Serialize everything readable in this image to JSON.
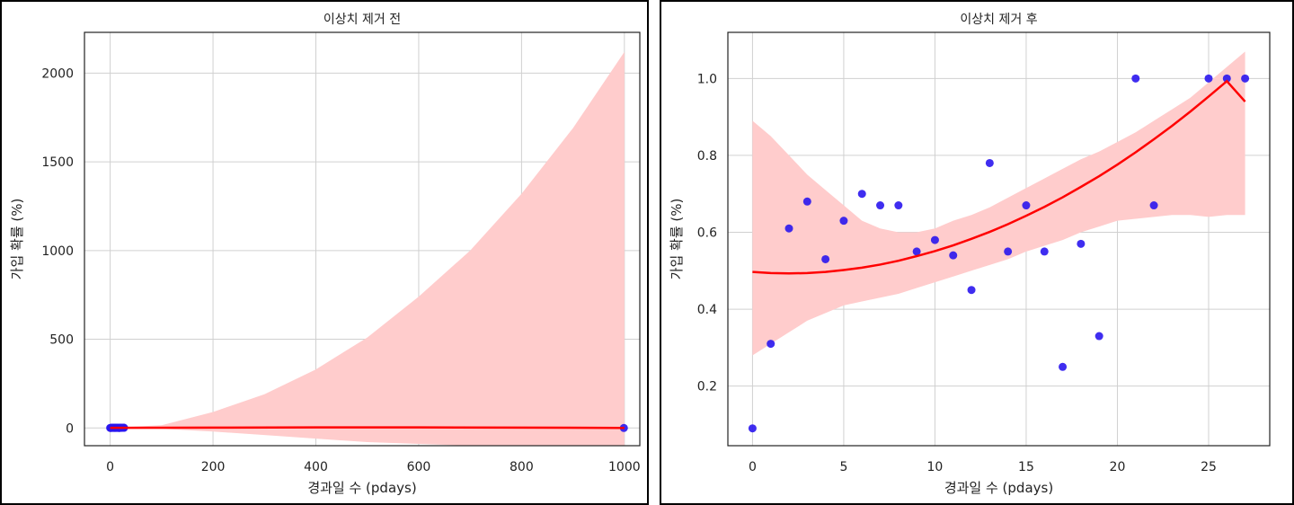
{
  "colors": {
    "ci_band": "#ffcccc",
    "fit_line": "#ff0000",
    "points": "#2a16ee",
    "grid": "#d0d0d0"
  },
  "chart_data": [
    {
      "type": "scatter",
      "title": "이상치 제거 전",
      "xlabel": "경과일 수 (pdays)",
      "ylabel": "가입 확률 (%)",
      "xlim": [
        -50,
        1030
      ],
      "ylim": [
        -100,
        2230
      ],
      "xticks": [
        0,
        200,
        400,
        600,
        800,
        1000
      ],
      "yticks": [
        0,
        500,
        1000,
        1500,
        2000
      ],
      "grid": true,
      "points": [
        {
          "x": 0,
          "y": 0.09
        },
        {
          "x": 1,
          "y": 0.31
        },
        {
          "x": 2,
          "y": 0.61
        },
        {
          "x": 3,
          "y": 0.68
        },
        {
          "x": 4,
          "y": 0.53
        },
        {
          "x": 5,
          "y": 0.63
        },
        {
          "x": 6,
          "y": 0.7
        },
        {
          "x": 7,
          "y": 0.67
        },
        {
          "x": 8,
          "y": 0.67
        },
        {
          "x": 9,
          "y": 0.55
        },
        {
          "x": 10,
          "y": 0.58
        },
        {
          "x": 11,
          "y": 0.54
        },
        {
          "x": 12,
          "y": 0.45
        },
        {
          "x": 13,
          "y": 0.78
        },
        {
          "x": 14,
          "y": 0.55
        },
        {
          "x": 15,
          "y": 0.67
        },
        {
          "x": 16,
          "y": 0.55
        },
        {
          "x": 17,
          "y": 0.25
        },
        {
          "x": 18,
          "y": 0.57
        },
        {
          "x": 19,
          "y": 0.33
        },
        {
          "x": 20,
          "y": 1.0
        },
        {
          "x": 21,
          "y": 1.0
        },
        {
          "x": 22,
          "y": 0.67
        },
        {
          "x": 25,
          "y": 1.0
        },
        {
          "x": 26,
          "y": 1.0
        },
        {
          "x": 27,
          "y": 1.0
        },
        {
          "x": 999,
          "y": 0.0
        }
      ],
      "fit_line": [
        {
          "x": 0,
          "y": 0.5
        },
        {
          "x": 200,
          "y": 2
        },
        {
          "x": 400,
          "y": 3
        },
        {
          "x": 600,
          "y": 3
        },
        {
          "x": 800,
          "y": 2
        },
        {
          "x": 1000,
          "y": 0
        }
      ],
      "ci_band": [
        {
          "x": 0,
          "lo": -1,
          "hi": 1
        },
        {
          "x": 100,
          "lo": -5,
          "hi": 15
        },
        {
          "x": 200,
          "lo": -20,
          "hi": 90
        },
        {
          "x": 300,
          "lo": -40,
          "hi": 190
        },
        {
          "x": 400,
          "lo": -60,
          "hi": 330
        },
        {
          "x": 500,
          "lo": -80,
          "hi": 510
        },
        {
          "x": 600,
          "lo": -90,
          "hi": 740
        },
        {
          "x": 700,
          "lo": -100,
          "hi": 1000
        },
        {
          "x": 800,
          "lo": -100,
          "hi": 1320
        },
        {
          "x": 900,
          "lo": -100,
          "hi": 1690
        },
        {
          "x": 1000,
          "lo": -100,
          "hi": 2120
        }
      ]
    },
    {
      "type": "scatter",
      "title": "이상치 제거 후",
      "xlabel": "경과일 수 (pdays)",
      "ylabel": "가입 확률 (%)",
      "xlim": [
        -1.35,
        28.35
      ],
      "ylim": [
        0.045,
        1.12
      ],
      "xticks": [
        0,
        5,
        10,
        15,
        20,
        25
      ],
      "yticks": [
        0.2,
        0.4,
        0.6,
        0.8,
        1.0
      ],
      "grid": true,
      "points": [
        {
          "x": 0,
          "y": 0.09
        },
        {
          "x": 1,
          "y": 0.31
        },
        {
          "x": 2,
          "y": 0.61
        },
        {
          "x": 3,
          "y": 0.68
        },
        {
          "x": 4,
          "y": 0.53
        },
        {
          "x": 5,
          "y": 0.63
        },
        {
          "x": 6,
          "y": 0.7
        },
        {
          "x": 7,
          "y": 0.67
        },
        {
          "x": 8,
          "y": 0.67
        },
        {
          "x": 9,
          "y": 0.55
        },
        {
          "x": 10,
          "y": 0.58
        },
        {
          "x": 11,
          "y": 0.54
        },
        {
          "x": 12,
          "y": 0.45
        },
        {
          "x": 13,
          "y": 0.78
        },
        {
          "x": 14,
          "y": 0.55
        },
        {
          "x": 15,
          "y": 0.67
        },
        {
          "x": 16,
          "y": 0.55
        },
        {
          "x": 17,
          "y": 0.25
        },
        {
          "x": 18,
          "y": 0.57
        },
        {
          "x": 19,
          "y": 0.33
        },
        {
          "x": 21,
          "y": 1.0
        },
        {
          "x": 22,
          "y": 0.67
        },
        {
          "x": 25,
          "y": 1.0
        },
        {
          "x": 26,
          "y": 1.0
        },
        {
          "x": 27,
          "y": 1.0
        }
      ],
      "fit_line": [
        {
          "x": 0,
          "y": 0.497
        },
        {
          "x": 1,
          "y": 0.494
        },
        {
          "x": 2,
          "y": 0.493
        },
        {
          "x": 3,
          "y": 0.494
        },
        {
          "x": 4,
          "y": 0.497
        },
        {
          "x": 5,
          "y": 0.502
        },
        {
          "x": 6,
          "y": 0.508
        },
        {
          "x": 7,
          "y": 0.516
        },
        {
          "x": 8,
          "y": 0.526
        },
        {
          "x": 9,
          "y": 0.538
        },
        {
          "x": 10,
          "y": 0.551
        },
        {
          "x": 11,
          "y": 0.566
        },
        {
          "x": 12,
          "y": 0.583
        },
        {
          "x": 13,
          "y": 0.601
        },
        {
          "x": 14,
          "y": 0.621
        },
        {
          "x": 15,
          "y": 0.643
        },
        {
          "x": 16,
          "y": 0.666
        },
        {
          "x": 17,
          "y": 0.691
        },
        {
          "x": 18,
          "y": 0.718
        },
        {
          "x": 19,
          "y": 0.746
        },
        {
          "x": 20,
          "y": 0.776
        },
        {
          "x": 21,
          "y": 0.808
        },
        {
          "x": 22,
          "y": 0.842
        },
        {
          "x": 23,
          "y": 0.877
        },
        {
          "x": 24,
          "y": 0.914
        },
        {
          "x": 25,
          "y": 0.953
        },
        {
          "x": 26,
          "y": 0.993
        },
        {
          "x": 27,
          "y": 0.94
        }
      ],
      "ci_band": [
        {
          "x": 0,
          "lo": 0.28,
          "hi": 0.89
        },
        {
          "x": 1,
          "lo": 0.31,
          "hi": 0.85
        },
        {
          "x": 2,
          "lo": 0.34,
          "hi": 0.8
        },
        {
          "x": 3,
          "lo": 0.37,
          "hi": 0.75
        },
        {
          "x": 4,
          "lo": 0.39,
          "hi": 0.71
        },
        {
          "x": 5,
          "lo": 0.41,
          "hi": 0.67
        },
        {
          "x": 6,
          "lo": 0.42,
          "hi": 0.63
        },
        {
          "x": 7,
          "lo": 0.43,
          "hi": 0.61
        },
        {
          "x": 8,
          "lo": 0.44,
          "hi": 0.6
        },
        {
          "x": 9,
          "lo": 0.455,
          "hi": 0.6
        },
        {
          "x": 10,
          "lo": 0.47,
          "hi": 0.61
        },
        {
          "x": 11,
          "lo": 0.485,
          "hi": 0.63
        },
        {
          "x": 12,
          "lo": 0.5,
          "hi": 0.645
        },
        {
          "x": 13,
          "lo": 0.515,
          "hi": 0.665
        },
        {
          "x": 14,
          "lo": 0.53,
          "hi": 0.69
        },
        {
          "x": 15,
          "lo": 0.55,
          "hi": 0.715
        },
        {
          "x": 16,
          "lo": 0.565,
          "hi": 0.74
        },
        {
          "x": 17,
          "lo": 0.58,
          "hi": 0.765
        },
        {
          "x": 18,
          "lo": 0.6,
          "hi": 0.79
        },
        {
          "x": 19,
          "lo": 0.615,
          "hi": 0.81
        },
        {
          "x": 20,
          "lo": 0.63,
          "hi": 0.835
        },
        {
          "x": 21,
          "lo": 0.635,
          "hi": 0.86
        },
        {
          "x": 22,
          "lo": 0.64,
          "hi": 0.89
        },
        {
          "x": 23,
          "lo": 0.645,
          "hi": 0.92
        },
        {
          "x": 24,
          "lo": 0.645,
          "hi": 0.95
        },
        {
          "x": 25,
          "lo": 0.64,
          "hi": 0.99
        },
        {
          "x": 26,
          "lo": 0.645,
          "hi": 1.03
        },
        {
          "x": 27,
          "lo": 0.645,
          "hi": 1.07
        }
      ]
    }
  ]
}
